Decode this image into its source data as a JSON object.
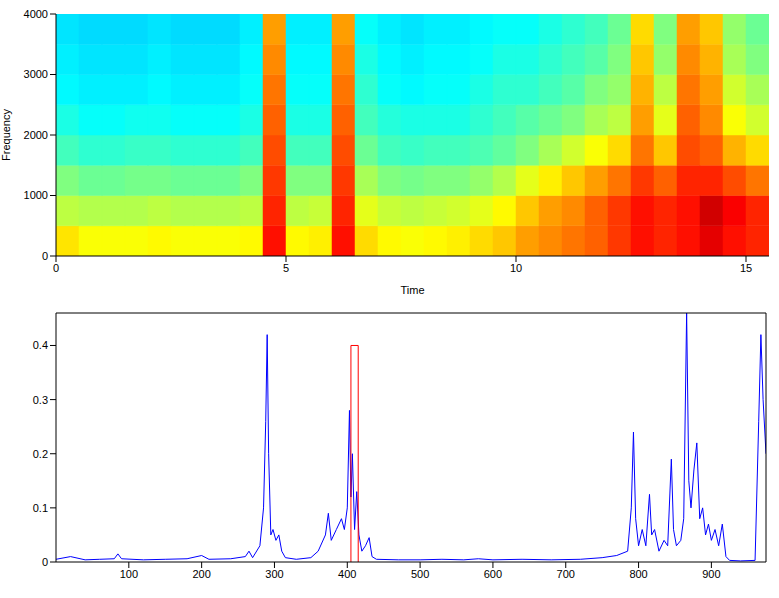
{
  "chart_data": [
    {
      "type": "heatmap",
      "xlabel": "Time",
      "ylabel": "Frequency",
      "xlim": [
        0,
        15.5
      ],
      "xticks": [
        0,
        5,
        10,
        15
      ],
      "ylim": [
        0,
        4000
      ],
      "yticks": [
        0,
        1000,
        2000,
        3000,
        4000
      ],
      "time_bins": [
        0,
        0.5,
        1,
        1.5,
        2,
        2.5,
        3,
        3.5,
        4,
        4.5,
        5,
        5.5,
        6,
        6.5,
        7,
        7.5,
        8,
        8.5,
        9,
        9.5,
        10,
        10.5,
        11,
        11.5,
        12,
        12.5,
        13,
        13.5,
        14,
        14.5,
        15,
        15.5
      ],
      "freq_bins": [
        0,
        500,
        1000,
        1500,
        2000,
        2500,
        3000,
        3500,
        4000
      ],
      "color_range": [
        0,
        1
      ],
      "cells": [
        [
          0.65,
          0.62,
          0.62,
          0.62,
          0.63,
          0.62,
          0.62,
          0.62,
          0.63,
          0.86,
          0.63,
          0.64,
          0.86,
          0.66,
          0.63,
          0.62,
          0.63,
          0.64,
          0.66,
          0.68,
          0.72,
          0.74,
          0.76,
          0.78,
          0.82,
          0.86,
          0.84,
          0.86,
          0.9,
          0.86,
          0.84
        ],
        [
          0.56,
          0.55,
          0.55,
          0.55,
          0.56,
          0.55,
          0.55,
          0.55,
          0.56,
          0.84,
          0.56,
          0.57,
          0.84,
          0.6,
          0.57,
          0.56,
          0.57,
          0.58,
          0.6,
          0.63,
          0.68,
          0.72,
          0.74,
          0.78,
          0.82,
          0.86,
          0.84,
          0.86,
          0.92,
          0.88,
          0.84
        ],
        [
          0.5,
          0.48,
          0.48,
          0.49,
          0.49,
          0.48,
          0.48,
          0.48,
          0.5,
          0.82,
          0.5,
          0.5,
          0.82,
          0.54,
          0.5,
          0.49,
          0.5,
          0.5,
          0.52,
          0.55,
          0.6,
          0.64,
          0.68,
          0.72,
          0.76,
          0.82,
          0.78,
          0.84,
          0.84,
          0.8,
          0.76
        ],
        [
          0.44,
          0.42,
          0.42,
          0.43,
          0.43,
          0.42,
          0.42,
          0.42,
          0.44,
          0.8,
          0.44,
          0.44,
          0.8,
          0.48,
          0.44,
          0.43,
          0.44,
          0.44,
          0.45,
          0.47,
          0.5,
          0.54,
          0.58,
          0.62,
          0.66,
          0.76,
          0.68,
          0.8,
          0.78,
          0.7,
          0.66
        ],
        [
          0.4,
          0.38,
          0.38,
          0.39,
          0.39,
          0.38,
          0.38,
          0.38,
          0.4,
          0.78,
          0.4,
          0.4,
          0.78,
          0.44,
          0.41,
          0.4,
          0.4,
          0.4,
          0.42,
          0.44,
          0.46,
          0.48,
          0.5,
          0.54,
          0.56,
          0.72,
          0.6,
          0.78,
          0.74,
          0.62,
          0.58
        ],
        [
          0.37,
          0.36,
          0.36,
          0.36,
          0.37,
          0.36,
          0.36,
          0.36,
          0.38,
          0.76,
          0.38,
          0.38,
          0.76,
          0.42,
          0.38,
          0.37,
          0.38,
          0.38,
          0.4,
          0.42,
          0.42,
          0.44,
          0.46,
          0.5,
          0.52,
          0.7,
          0.56,
          0.76,
          0.72,
          0.58,
          0.54
        ],
        [
          0.36,
          0.35,
          0.35,
          0.35,
          0.36,
          0.35,
          0.35,
          0.35,
          0.37,
          0.74,
          0.37,
          0.37,
          0.74,
          0.4,
          0.37,
          0.36,
          0.37,
          0.37,
          0.38,
          0.4,
          0.4,
          0.42,
          0.44,
          0.46,
          0.5,
          0.68,
          0.52,
          0.74,
          0.7,
          0.54,
          0.5
        ],
        [
          0.35,
          0.34,
          0.34,
          0.34,
          0.35,
          0.34,
          0.34,
          0.34,
          0.36,
          0.72,
          0.36,
          0.36,
          0.72,
          0.38,
          0.36,
          0.35,
          0.36,
          0.36,
          0.37,
          0.38,
          0.38,
          0.4,
          0.42,
          0.44,
          0.48,
          0.66,
          0.5,
          0.72,
          0.68,
          0.52,
          0.48
        ]
      ]
    },
    {
      "type": "line",
      "xlim": [
        0,
        975
      ],
      "xticks": [
        100,
        200,
        300,
        400,
        500,
        600,
        700,
        800,
        900
      ],
      "ylim": [
        0,
        0.46
      ],
      "yticks": [
        0,
        0.1,
        0.2,
        0.3,
        0.4
      ],
      "series": [
        {
          "color": "#0000ff",
          "x": [
            0,
            20,
            40,
            60,
            80,
            85,
            90,
            120,
            150,
            180,
            200,
            210,
            240,
            260,
            265,
            270,
            280,
            285,
            288,
            290,
            292,
            295,
            298,
            302,
            306,
            310,
            315,
            330,
            350,
            360,
            370,
            374,
            378,
            385,
            392,
            396,
            400,
            403,
            405,
            407,
            410,
            413,
            416,
            420,
            425,
            430,
            434,
            440,
            470,
            500,
            530,
            560,
            580,
            600,
            640,
            680,
            720,
            750,
            770,
            785,
            790,
            793,
            796,
            800,
            805,
            810,
            815,
            818,
            822,
            828,
            835,
            840,
            845,
            848,
            852,
            858,
            862,
            866,
            869,
            872,
            876,
            880,
            884,
            888,
            892,
            896,
            900,
            905,
            910,
            915,
            920,
            925,
            940,
            960,
            965,
            968,
            971,
            975
          ],
          "values": [
            0.005,
            0.01,
            0.004,
            0.005,
            0.006,
            0.015,
            0.006,
            0.004,
            0.005,
            0.006,
            0.012,
            0.005,
            0.006,
            0.01,
            0.02,
            0.008,
            0.03,
            0.1,
            0.26,
            0.42,
            0.2,
            0.05,
            0.06,
            0.04,
            0.05,
            0.02,
            0.008,
            0.005,
            0.008,
            0.02,
            0.05,
            0.09,
            0.04,
            0.06,
            0.08,
            0.06,
            0.1,
            0.28,
            0.12,
            0.2,
            0.06,
            0.13,
            0.05,
            0.02,
            0.03,
            0.045,
            0.01,
            0.005,
            0.004,
            0.004,
            0.005,
            0.004,
            0.006,
            0.004,
            0.005,
            0.004,
            0.005,
            0.008,
            0.012,
            0.02,
            0.1,
            0.24,
            0.08,
            0.03,
            0.06,
            0.03,
            0.125,
            0.05,
            0.06,
            0.02,
            0.04,
            0.03,
            0.19,
            0.06,
            0.03,
            0.04,
            0.08,
            0.46,
            0.15,
            0.1,
            0.17,
            0.22,
            0.08,
            0.1,
            0.05,
            0.07,
            0.04,
            0.06,
            0.03,
            0.07,
            0.01,
            0.003,
            0.002,
            0.003,
            0.26,
            0.42,
            0.3,
            0.2
          ]
        },
        {
          "color": "#ff0000",
          "x": [
            405,
            405,
            415,
            415
          ],
          "values": [
            0,
            0.4,
            0.4,
            0
          ]
        }
      ]
    }
  ]
}
